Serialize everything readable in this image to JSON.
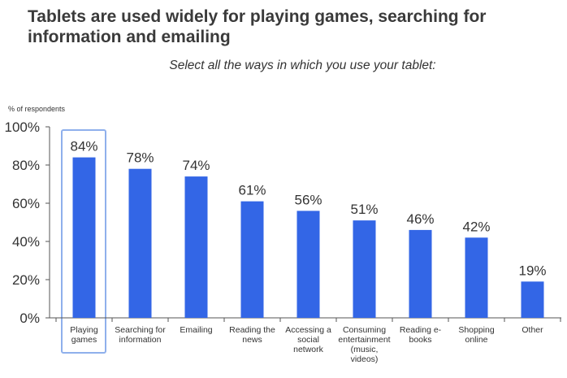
{
  "title": "Tablets are used widely for playing games, searching for information and emailing",
  "subtitle": "Select all the ways in which you use your tablet:",
  "colors": {
    "bar": "#3366e6",
    "highlight": "#8fb0ec",
    "axis": "#555555"
  },
  "chart_data": {
    "type": "bar",
    "title": "",
    "xlabel": "",
    "ylabel": "% of respondents",
    "ylim": [
      0,
      100
    ],
    "yticks": [
      0,
      20,
      40,
      60,
      80,
      100
    ],
    "ytick_labels": [
      "0%",
      "20%",
      "40%",
      "60%",
      "80%",
      "100%"
    ],
    "grid": false,
    "highlighted_category_index": 0,
    "categories": [
      [
        "Playing",
        "games"
      ],
      [
        "Searching for",
        "information"
      ],
      [
        "Emailing"
      ],
      [
        "Reading the",
        "news"
      ],
      [
        "Accessing a",
        "social",
        "network"
      ],
      [
        "Consuming",
        "entertainment",
        "(music,",
        "videos)"
      ],
      [
        "Reading e-",
        "books"
      ],
      [
        "Shopping",
        "online"
      ],
      [
        "Other"
      ]
    ],
    "values": [
      84,
      78,
      74,
      61,
      56,
      51,
      46,
      42,
      19
    ],
    "value_labels": [
      "84%",
      "78%",
      "74%",
      "61%",
      "56%",
      "51%",
      "46%",
      "42%",
      "19%"
    ]
  }
}
